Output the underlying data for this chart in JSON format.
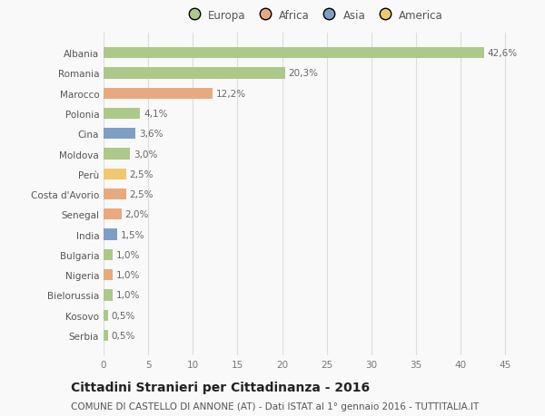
{
  "categories": [
    "Albania",
    "Romania",
    "Marocco",
    "Polonia",
    "Cina",
    "Moldova",
    "Perù",
    "Costa d'Avorio",
    "Senegal",
    "India",
    "Bulgaria",
    "Nigeria",
    "Bielorussia",
    "Kosovo",
    "Serbia"
  ],
  "values": [
    42.6,
    20.3,
    12.2,
    4.1,
    3.6,
    3.0,
    2.5,
    2.5,
    2.0,
    1.5,
    1.0,
    1.0,
    1.0,
    0.5,
    0.5
  ],
  "labels": [
    "42,6%",
    "20,3%",
    "12,2%",
    "4,1%",
    "3,6%",
    "3,0%",
    "2,5%",
    "2,5%",
    "2,0%",
    "1,5%",
    "1,0%",
    "1,0%",
    "1,0%",
    "0,5%",
    "0,5%"
  ],
  "colors": [
    "#adc98a",
    "#adc98a",
    "#e8a97e",
    "#adc98a",
    "#7b9fc7",
    "#adc98a",
    "#f0c96e",
    "#e8a97e",
    "#e8a97e",
    "#7b9fc7",
    "#adc98a",
    "#e8a97e",
    "#adc98a",
    "#adc98a",
    "#adc98a"
  ],
  "continent_colors": {
    "Europa": "#adc98a",
    "Africa": "#e8a97e",
    "Asia": "#7b9fc7",
    "America": "#f0c96e"
  },
  "title": "Cittadini Stranieri per Cittadinanza - 2016",
  "subtitle": "COMUNE DI CASTELLO DI ANNONE (AT) - Dati ISTAT al 1° gennaio 2016 - TUTTITALIA.IT",
  "xlim": [
    0,
    47
  ],
  "xticks": [
    0,
    5,
    10,
    15,
    20,
    25,
    30,
    35,
    40,
    45
  ],
  "background_color": "#f9f9f9",
  "grid_color": "#dddddd",
  "bar_height": 0.55,
  "title_fontsize": 10,
  "subtitle_fontsize": 7.5,
  "label_fontsize": 7.5,
  "tick_fontsize": 7.5,
  "legend_fontsize": 8.5
}
